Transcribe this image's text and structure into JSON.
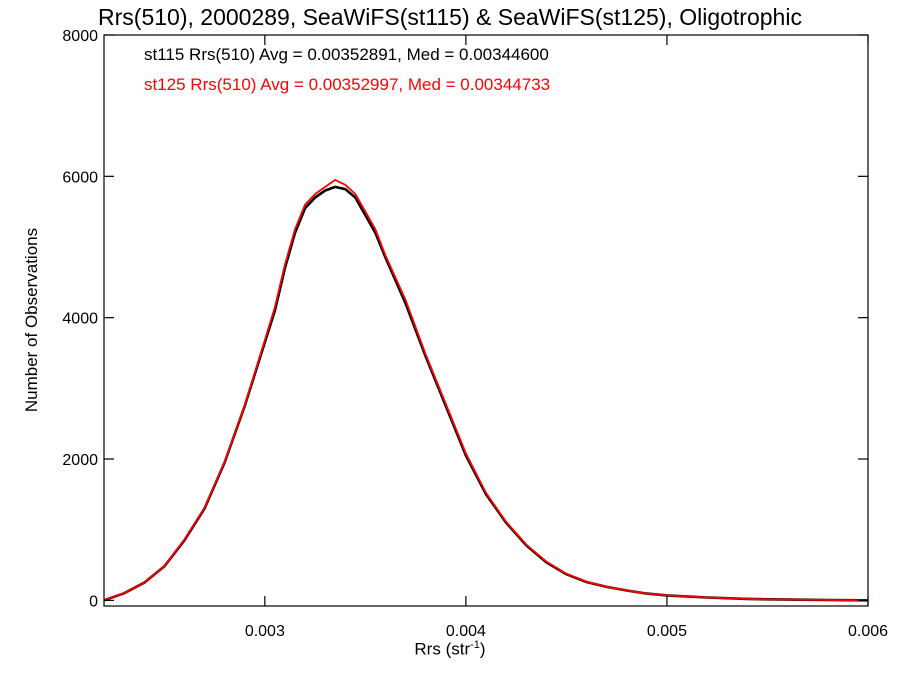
{
  "chart_data": {
    "type": "line",
    "title": "Rrs(510), 2000289, SeaWiFS(st115) & SeaWiFS(st125), Oligotrophic",
    "xlabel": "Rrs (str",
    "xlabel_sup": "-1",
    "xlabel_close": ")",
    "ylabel": "Number of Observations",
    "xlim": [
      0.0022,
      0.006
    ],
    "ylim": [
      -80,
      8000
    ],
    "xticks": [
      0.003,
      0.004,
      0.005,
      0.006
    ],
    "xtick_labels": [
      "0.003",
      "0.004",
      "0.005",
      "0.006"
    ],
    "yticks": [
      0,
      2000,
      4000,
      6000,
      8000
    ],
    "ytick_labels": [
      "0",
      "2000",
      "4000",
      "6000",
      "8000"
    ],
    "legend": [
      {
        "text": "st115 Rrs(510) Avg = 0.00352891, Med = 0.00344600",
        "color": "#000000"
      },
      {
        "text": "st125 Rrs(510) Avg = 0.00352997, Med = 0.00344733",
        "color": "#ff0000"
      }
    ],
    "series": [
      {
        "color": "#000000",
        "x": [
          0.0022,
          0.0023,
          0.0024,
          0.0025,
          0.0026,
          0.0027,
          0.0028,
          0.0029,
          0.003,
          0.00305,
          0.0031,
          0.00315,
          0.0032,
          0.00325,
          0.0033,
          0.00335,
          0.0034,
          0.00345,
          0.0035,
          0.00355,
          0.0036,
          0.0037,
          0.0038,
          0.0039,
          0.004,
          0.0041,
          0.0042,
          0.0043,
          0.0044,
          0.0045,
          0.0046,
          0.0047,
          0.0048,
          0.0049,
          0.005,
          0.0052,
          0.0054,
          0.0056,
          0.0058,
          0.006
        ],
        "values": [
          0,
          100,
          250,
          480,
          850,
          1300,
          1950,
          2750,
          3650,
          4100,
          4700,
          5200,
          5550,
          5700,
          5800,
          5850,
          5820,
          5700,
          5450,
          5200,
          4850,
          4200,
          3450,
          2750,
          2050,
          1500,
          1100,
          780,
          540,
          370,
          260,
          190,
          140,
          95,
          70,
          40,
          20,
          10,
          5,
          0
        ]
      },
      {
        "color": "#ff0000",
        "x": [
          0.0022,
          0.0023,
          0.0024,
          0.0025,
          0.0026,
          0.0027,
          0.0028,
          0.0029,
          0.003,
          0.00305,
          0.0031,
          0.00315,
          0.0032,
          0.00325,
          0.0033,
          0.00335,
          0.0034,
          0.00345,
          0.0035,
          0.00355,
          0.0036,
          0.0037,
          0.0038,
          0.0039,
          0.004,
          0.0041,
          0.0042,
          0.0043,
          0.0044,
          0.0045,
          0.0046,
          0.0047,
          0.0048,
          0.0049,
          0.005,
          0.0052,
          0.0054,
          0.0056,
          0.0058,
          0.006
        ],
        "values": [
          0,
          100,
          250,
          480,
          860,
          1310,
          1960,
          2760,
          3680,
          4150,
          4750,
          5250,
          5600,
          5750,
          5850,
          5950,
          5880,
          5750,
          5500,
          5250,
          4880,
          4250,
          3480,
          2780,
          2080,
          1520,
          1110,
          790,
          550,
          375,
          265,
          190,
          140,
          95,
          70,
          40,
          20,
          10,
          5,
          0
        ]
      }
    ]
  }
}
